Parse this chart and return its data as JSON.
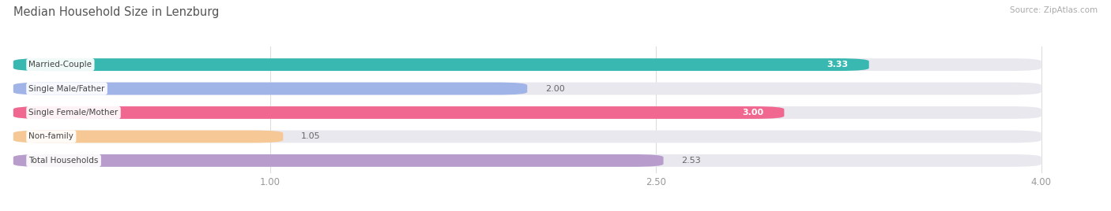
{
  "title": "Median Household Size in Lenzburg",
  "source": "Source: ZipAtlas.com",
  "categories": [
    "Married-Couple",
    "Single Male/Father",
    "Single Female/Mother",
    "Non-family",
    "Total Households"
  ],
  "values": [
    3.33,
    2.0,
    3.0,
    1.05,
    2.53
  ],
  "bar_colors": [
    "#38b8b0",
    "#a0b4e8",
    "#f06890",
    "#f5c896",
    "#b89ccc"
  ],
  "bar_bg_color": "#e8e8ee",
  "xlim": [
    0,
    4.22
  ],
  "xdata_max": 4.0,
  "xticks": [
    1.0,
    2.5,
    4.0
  ],
  "value_label_color_dark": "#666666",
  "value_label_color_light": "#ffffff",
  "value_threshold": 2.8,
  "title_color": "#555555",
  "source_color": "#aaaaaa",
  "background_color": "#ffffff",
  "label_bg_color": "#ffffff"
}
